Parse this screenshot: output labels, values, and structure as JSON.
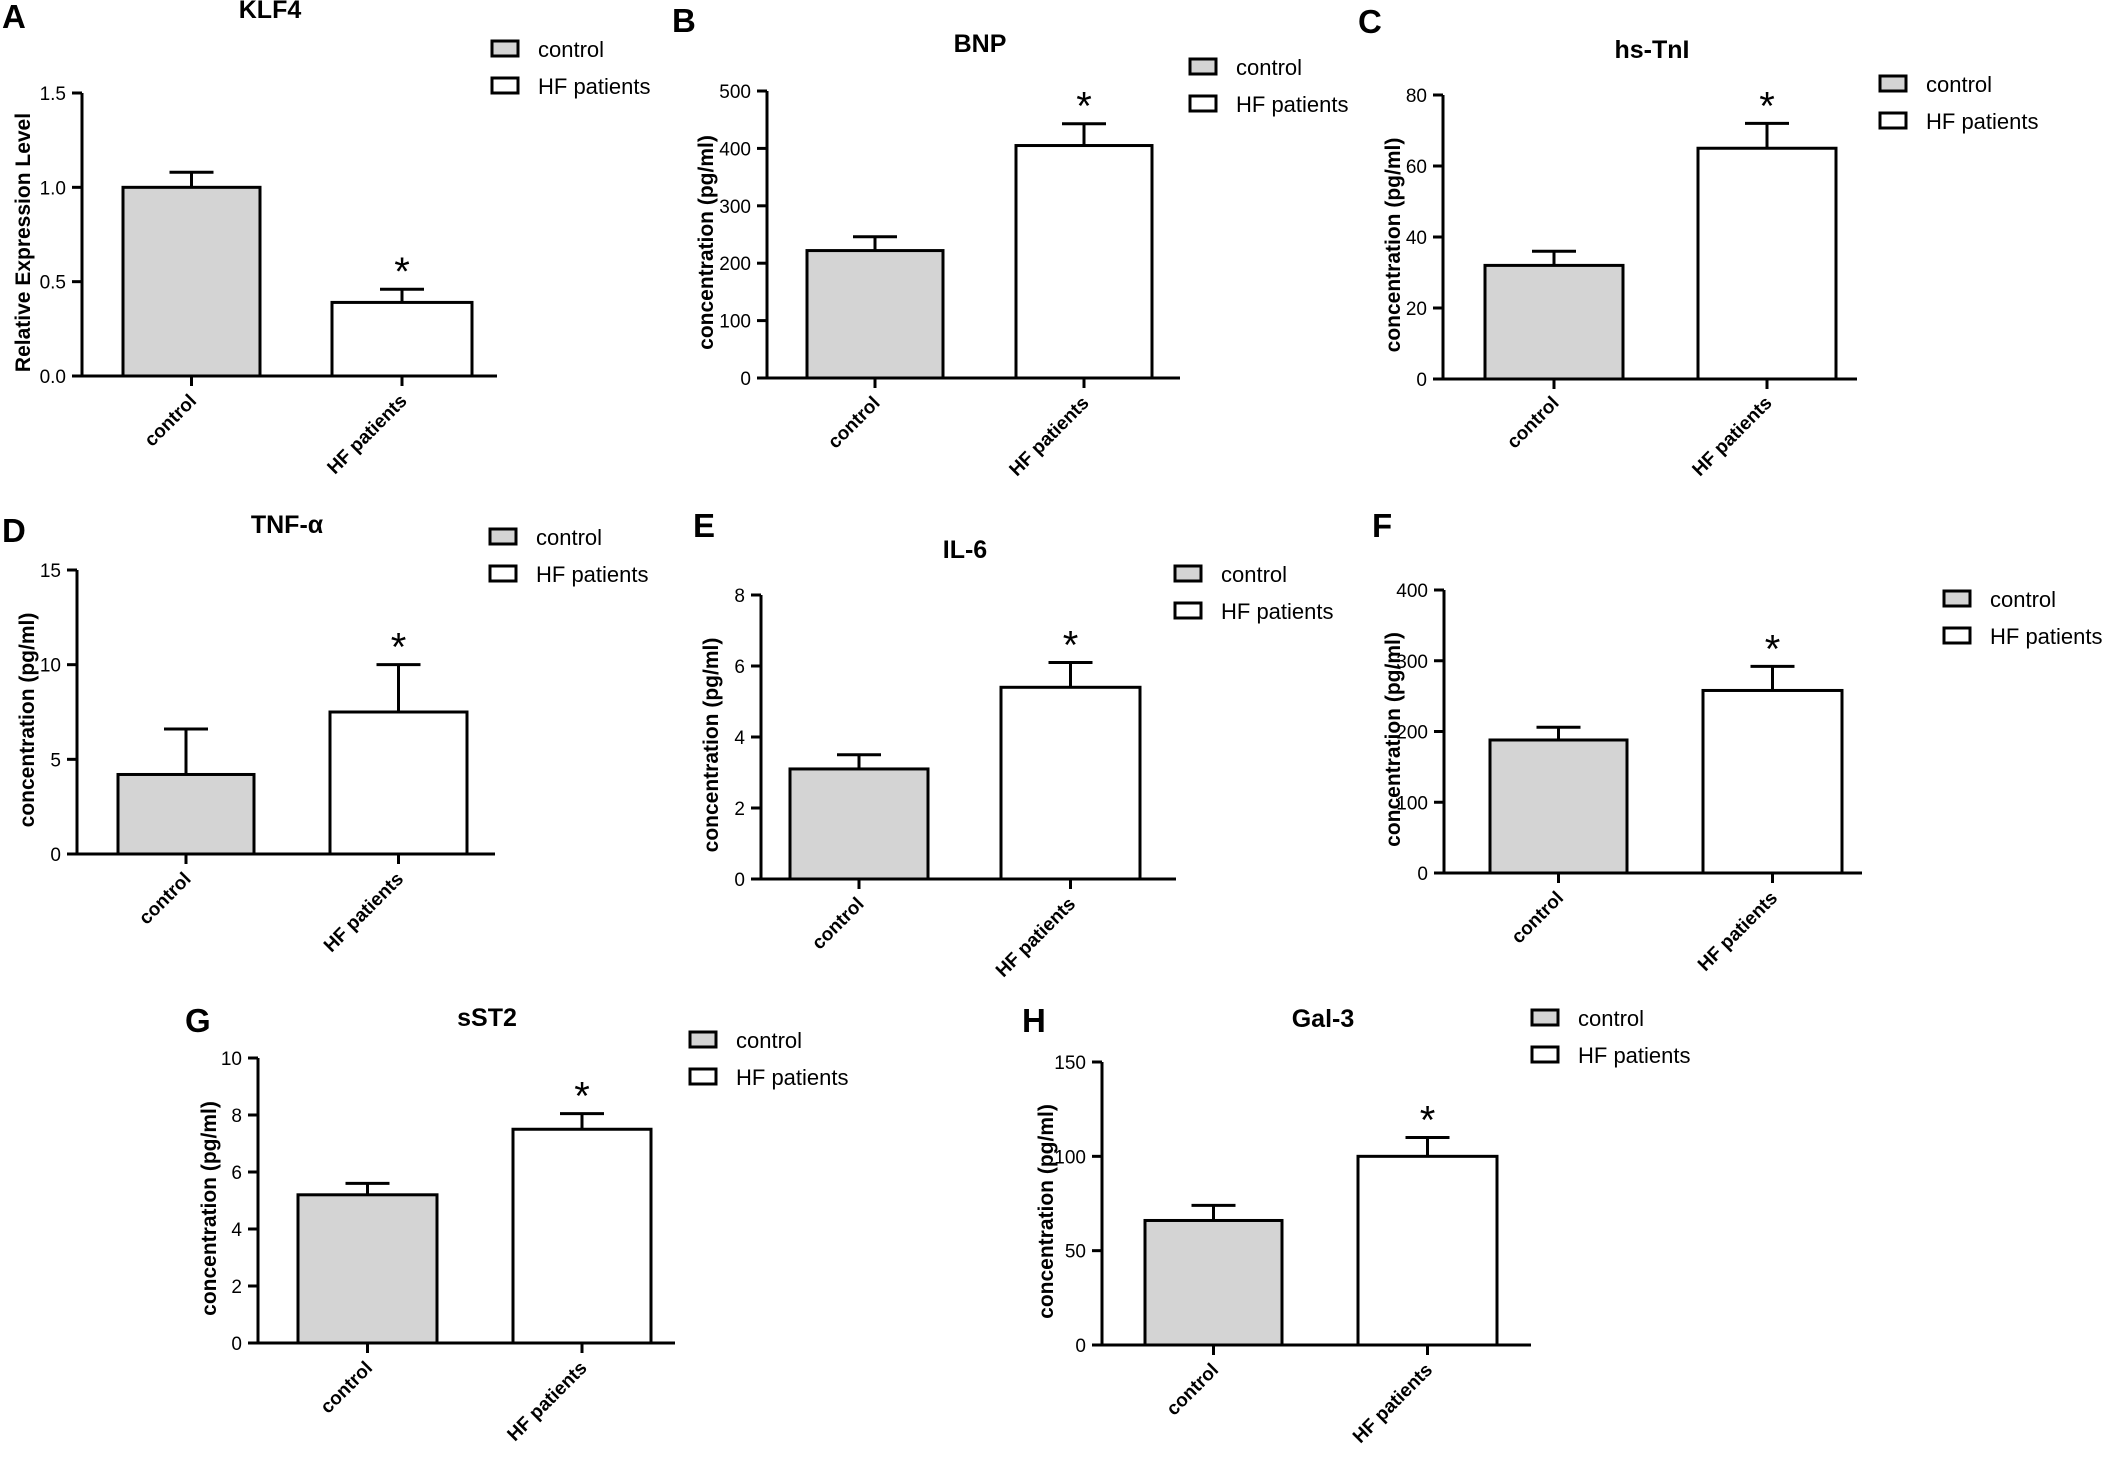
{
  "figure": {
    "fills": {
      "control": "#d4d4d4",
      "hf": "#ffffff"
    },
    "panels": [
      {
        "letter": "A",
        "chart_data": {
          "type": "bar",
          "title": "KLF4",
          "ylabel": "Relative Expression Level",
          "categories": [
            "control",
            "HF patients"
          ],
          "values": [
            1.0,
            0.39
          ],
          "errors": [
            0.08,
            0.07
          ],
          "significance": [
            "",
            "*"
          ],
          "ylim": [
            0,
            1.5
          ],
          "yticks": [
            "0.0",
            "0.5",
            "1.0",
            "1.5"
          ],
          "legend": [
            "control",
            "HF patients"
          ],
          "grid": false,
          "legend_position": "top-right"
        }
      },
      {
        "letter": "B",
        "chart_data": {
          "type": "bar",
          "title": "BNP",
          "ylabel": "concentration (pg/ml)",
          "categories": [
            "control",
            "HF patients"
          ],
          "values": [
            222,
            405
          ],
          "errors": [
            24,
            38
          ],
          "significance": [
            "",
            "*"
          ],
          "ylim": [
            0,
            500
          ],
          "yticks": [
            "0",
            "100",
            "200",
            "300",
            "400",
            "500"
          ],
          "legend": [
            "control",
            "HF patients"
          ],
          "grid": false,
          "legend_position": "top-right"
        }
      },
      {
        "letter": "C",
        "chart_data": {
          "type": "bar",
          "title": "hs-TnI",
          "ylabel": "concentration (pg/ml)",
          "categories": [
            "control",
            "HF patients"
          ],
          "values": [
            32,
            65
          ],
          "errors": [
            4,
            7
          ],
          "significance": [
            "",
            "*"
          ],
          "ylim": [
            0,
            80
          ],
          "yticks": [
            "0",
            "20",
            "40",
            "60",
            "80"
          ],
          "legend": [
            "control",
            "HF patients"
          ],
          "grid": false,
          "legend_position": "top-right"
        }
      },
      {
        "letter": "D",
        "chart_data": {
          "type": "bar",
          "title": "TNF-α",
          "ylabel": "concentration (pg/ml)",
          "categories": [
            "control",
            "HF patients"
          ],
          "values": [
            4.2,
            7.5
          ],
          "errors": [
            2.4,
            2.5
          ],
          "significance": [
            "",
            "*"
          ],
          "ylim": [
            0,
            15
          ],
          "yticks": [
            "0",
            "5",
            "10",
            "15"
          ],
          "legend": [
            "control",
            "HF patients"
          ],
          "grid": false,
          "legend_position": "top-right"
        }
      },
      {
        "letter": "E",
        "chart_data": {
          "type": "bar",
          "title": "IL-6",
          "ylabel": "concentration (pg/ml)",
          "categories": [
            "control",
            "HF patients"
          ],
          "values": [
            3.1,
            5.4
          ],
          "errors": [
            0.4,
            0.7
          ],
          "significance": [
            "",
            "*"
          ],
          "ylim": [
            0,
            8
          ],
          "yticks": [
            "0",
            "2",
            "4",
            "6",
            "8"
          ],
          "legend": [
            "control",
            "HF patients"
          ],
          "grid": false,
          "legend_position": "top-right"
        }
      },
      {
        "letter": "F",
        "chart_data": {
          "type": "bar",
          "title": "",
          "ylabel": "concentration (pg/ml)",
          "categories": [
            "control",
            "HF patients"
          ],
          "values": [
            188,
            258
          ],
          "errors": [
            18,
            34
          ],
          "significance": [
            "",
            "*"
          ],
          "ylim": [
            0,
            400
          ],
          "yticks": [
            "0",
            "100",
            "200",
            "300",
            "400"
          ],
          "legend": [
            "control",
            "HF patients"
          ],
          "grid": false,
          "legend_position": "right"
        }
      },
      {
        "letter": "G",
        "chart_data": {
          "type": "bar",
          "title": "sST2",
          "ylabel": "concentration (pg/ml)",
          "categories": [
            "control",
            "HF patients"
          ],
          "values": [
            5.2,
            7.5
          ],
          "errors": [
            0.4,
            0.55
          ],
          "significance": [
            "",
            "*"
          ],
          "ylim": [
            0,
            10
          ],
          "yticks": [
            "0",
            "2",
            "4",
            "6",
            "8",
            "10"
          ],
          "legend": [
            "control",
            "HF patients"
          ],
          "grid": false,
          "legend_position": "top-right"
        }
      },
      {
        "letter": "H",
        "chart_data": {
          "type": "bar",
          "title": "Gal-3",
          "ylabel": "concentration (pg/ml)",
          "categories": [
            "control",
            "HF patients"
          ],
          "values": [
            66,
            100
          ],
          "errors": [
            8,
            10
          ],
          "significance": [
            "",
            "*"
          ],
          "ylim": [
            0,
            150
          ],
          "yticks": [
            "0",
            "50",
            "100",
            "150"
          ],
          "legend": [
            "control",
            "HF patients"
          ],
          "grid": false,
          "legend_position": "top-right"
        }
      }
    ]
  }
}
